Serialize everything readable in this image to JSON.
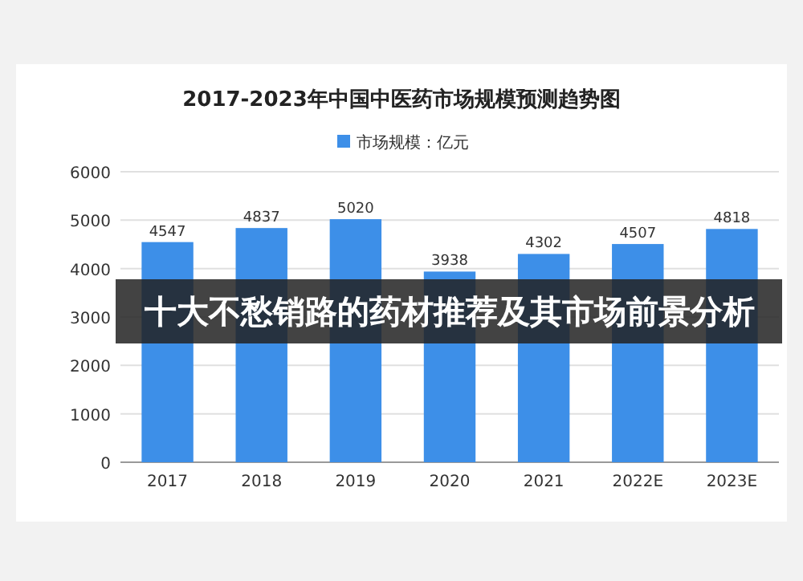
{
  "chart_data": {
    "type": "bar",
    "title": "2017-2023年中国中医药市场规模预测趋势图",
    "categories": [
      "2017",
      "2018",
      "2019",
      "2020",
      "2021",
      "2022E",
      "2023E"
    ],
    "series": [
      {
        "name": "市场规模：亿元",
        "color": "#3d8fe8",
        "values": [
          4547,
          4837,
          5020,
          3938,
          4302,
          4507,
          4818
        ]
      }
    ],
    "ylim": [
      0,
      6000
    ],
    "yticks": [
      0,
      1000,
      2000,
      3000,
      4000,
      5000,
      6000
    ],
    "grid": "y",
    "legend": "top",
    "data_labels": true,
    "annotations": [
      "十大不愁销路的药材推荐及其市场前景分析"
    ]
  }
}
